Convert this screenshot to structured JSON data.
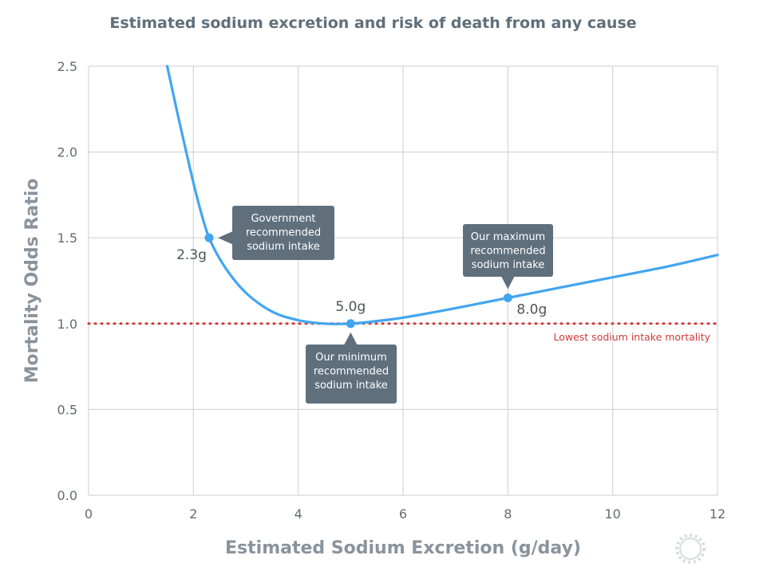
{
  "chart_data": {
    "type": "line",
    "title": "Estimated sodium excretion and risk of death from any cause",
    "xlabel": "Estimated Sodium Excretion (g/day)",
    "ylabel": "Mortality Odds Ratio",
    "xlim": [
      0,
      12
    ],
    "ylim": [
      0,
      2.5
    ],
    "x_ticks": [
      "0",
      "2",
      "4",
      "6",
      "8",
      "10",
      "12"
    ],
    "y_ticks": [
      "0.0",
      "0.5",
      "1.0",
      "1.5",
      "2.0",
      "2.5"
    ],
    "grid": true,
    "series": [
      {
        "color": "#42a5f0",
        "x": [
          1.5,
          1.7,
          1.9,
          2.1,
          2.3,
          2.6,
          3.0,
          3.5,
          4.0,
          4.5,
          5.0,
          5.5,
          6.0,
          7.0,
          8.0,
          9.0,
          10.0,
          11.0,
          12.0
        ],
        "y": [
          2.5,
          2.22,
          1.95,
          1.7,
          1.5,
          1.33,
          1.18,
          1.07,
          1.02,
          1.0,
          1.0,
          1.015,
          1.035,
          1.09,
          1.15,
          1.21,
          1.27,
          1.33,
          1.4
        ]
      }
    ],
    "reference_line": {
      "y": 1.0,
      "label": "Lowest sodium intake mortality",
      "color": "#cf3a3a"
    },
    "highlighted_points": [
      {
        "x": 2.3,
        "y": 1.5,
        "label": "2.3g",
        "callout": [
          "Government",
          "recommended",
          "sodium intake"
        ]
      },
      {
        "x": 5.0,
        "y": 1.0,
        "label": "5.0g",
        "callout": [
          "Our minimum",
          "recommended",
          "sodium intake"
        ]
      },
      {
        "x": 8.0,
        "y": 1.15,
        "label": "8.0g",
        "callout": [
          "Our maximum",
          "recommended",
          "sodium intake"
        ]
      }
    ]
  },
  "icon": "gear-icon"
}
